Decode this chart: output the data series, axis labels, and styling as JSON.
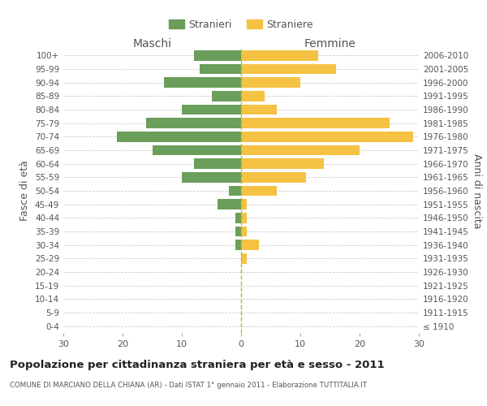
{
  "age_groups": [
    "0-4",
    "5-9",
    "10-14",
    "15-19",
    "20-24",
    "25-29",
    "30-34",
    "35-39",
    "40-44",
    "45-49",
    "50-54",
    "55-59",
    "60-64",
    "65-69",
    "70-74",
    "75-79",
    "80-84",
    "85-89",
    "90-94",
    "95-99",
    "100+"
  ],
  "birth_years": [
    "2006-2010",
    "2001-2005",
    "1996-2000",
    "1991-1995",
    "1986-1990",
    "1981-1985",
    "1976-1980",
    "1971-1975",
    "1966-1970",
    "1961-1965",
    "1956-1960",
    "1951-1955",
    "1946-1950",
    "1941-1945",
    "1936-1940",
    "1931-1935",
    "1926-1930",
    "1921-1925",
    "1916-1920",
    "1911-1915",
    "≤ 1910"
  ],
  "males": [
    8,
    7,
    13,
    5,
    10,
    16,
    21,
    15,
    8,
    10,
    2,
    4,
    1,
    1,
    1,
    0,
    0,
    0,
    0,
    0,
    0
  ],
  "females": [
    13,
    16,
    10,
    4,
    6,
    25,
    29,
    20,
    14,
    11,
    6,
    1,
    1,
    1,
    3,
    1,
    0,
    0,
    0,
    0,
    0
  ],
  "male_color": "#6a9e5b",
  "female_color": "#f5c243",
  "title_main": "Popolazione per cittadinanza straniera per età e sesso - 2011",
  "title_sub": "COMUNE DI MARCIANO DELLA CHIANA (AR) - Dati ISTAT 1° gennaio 2011 - Elaborazione TUTTITALIA.IT",
  "xlabel_left": "Maschi",
  "xlabel_right": "Femmine",
  "ylabel_left": "Fasce di età",
  "ylabel_right": "Anni di nascita",
  "legend_male": "Stranieri",
  "legend_female": "Straniere",
  "xlim": 30,
  "background_color": "#ffffff",
  "grid_color": "#cccccc"
}
